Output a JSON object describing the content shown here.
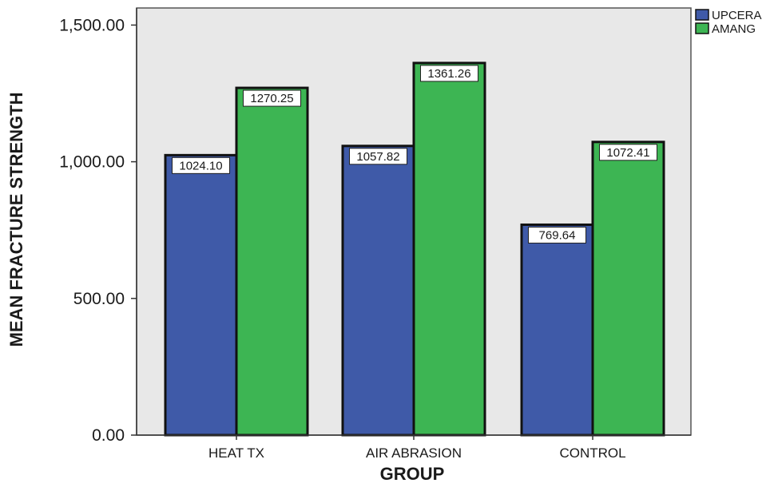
{
  "chart_data": {
    "type": "bar",
    "categories": [
      "HEAT TX",
      "AIR ABRASION",
      "CONTROL"
    ],
    "series": [
      {
        "name": "UPCERA",
        "color": "#3f5aa8",
        "values": [
          1024.1,
          1057.82,
          769.64
        ],
        "labels": [
          "1024.10",
          "1057.82",
          "769.64"
        ]
      },
      {
        "name": "AMANG",
        "color": "#3db553",
        "values": [
          1270.25,
          1361.26,
          1072.41
        ],
        "labels": [
          "1270.25",
          "1361.26",
          "1072.41"
        ]
      }
    ],
    "xlabel": "GROUP",
    "ylabel": "MEAN FRACTURE STRENGTH",
    "ylim": [
      0,
      1562.5
    ],
    "yticks": [
      0,
      500,
      1000,
      1500
    ],
    "ytick_labels": [
      "0.00",
      "500.00",
      "1,000.00",
      "1,500.00"
    ],
    "plot_background": "#e8e8e8",
    "grid": false,
    "legend_position": "top-right"
  }
}
